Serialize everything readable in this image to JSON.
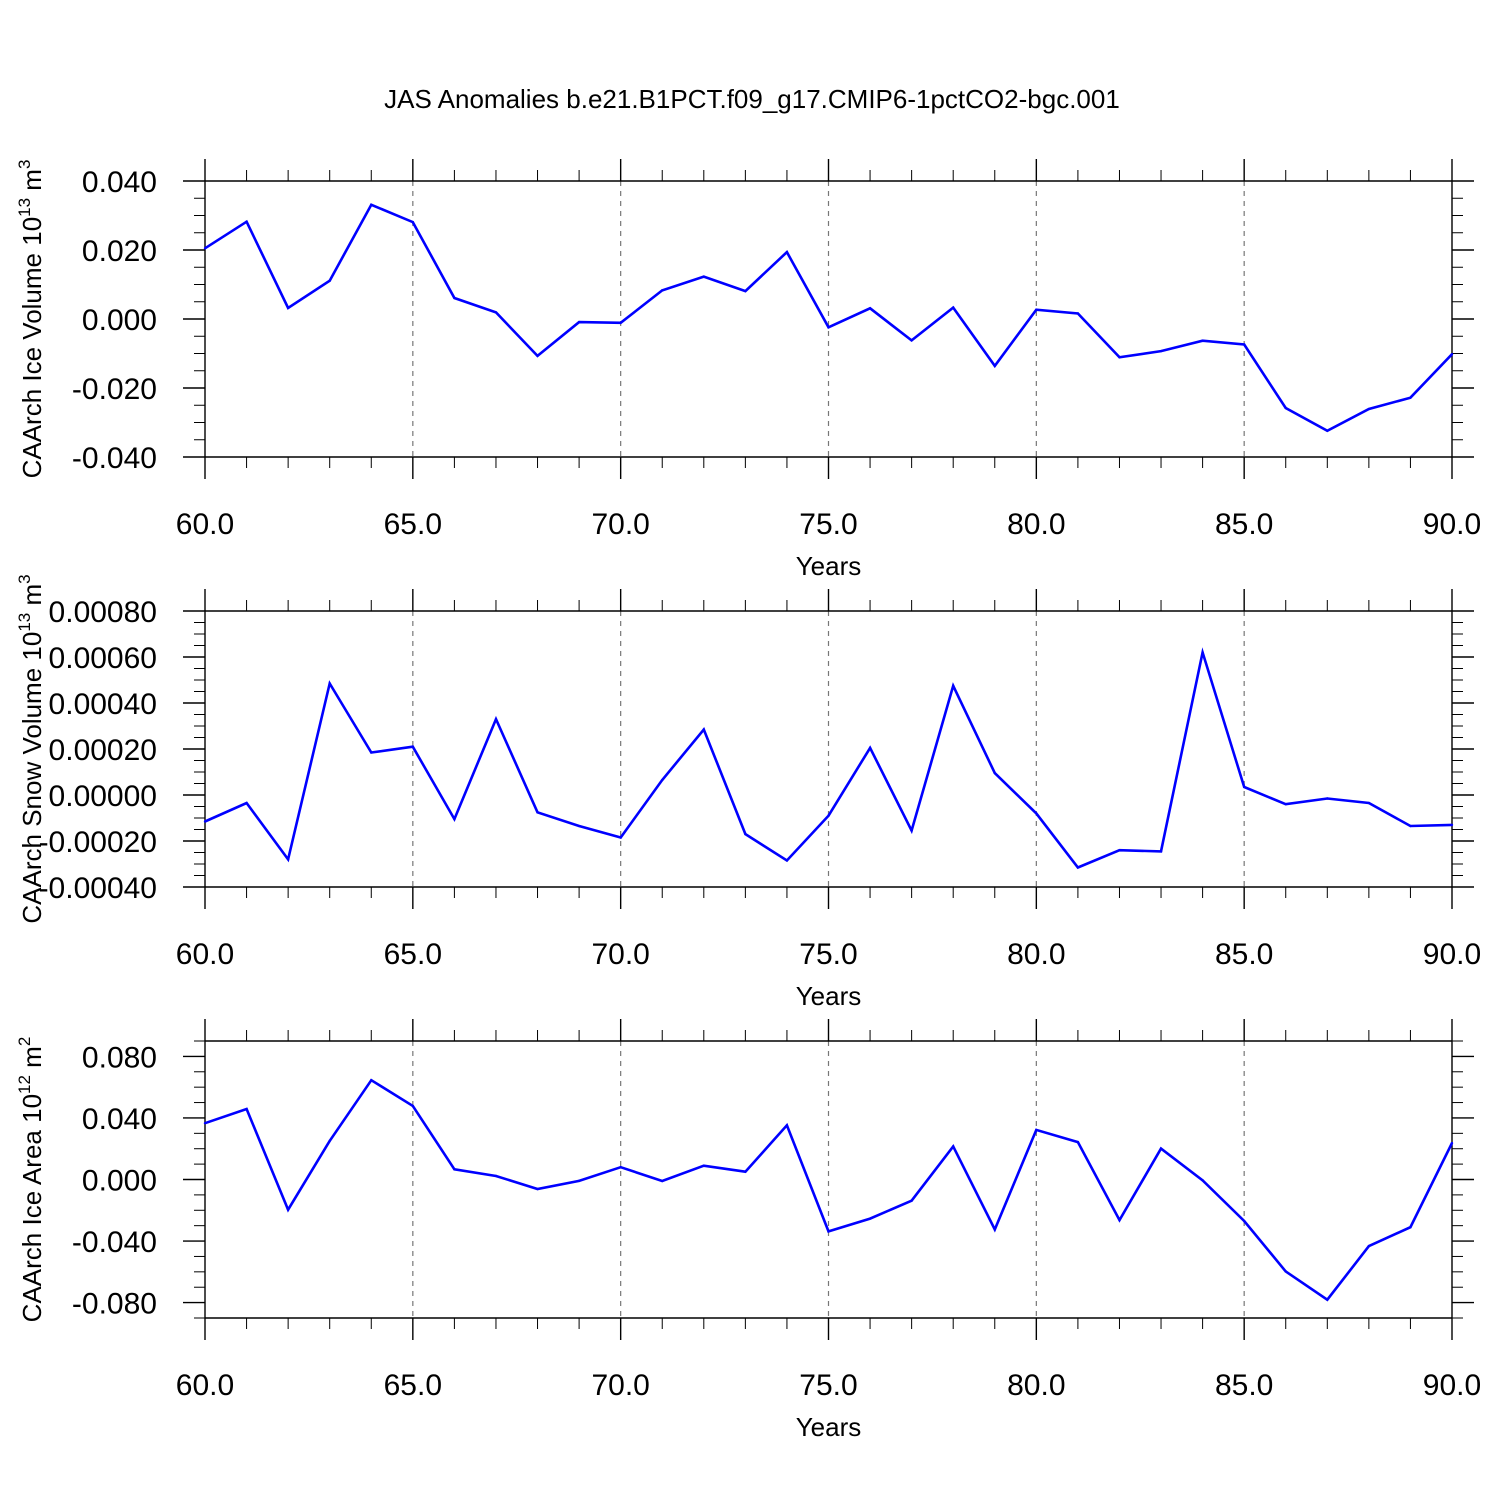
{
  "title": "JAS Anomalies b.e21.B1PCT.f09_g17.CMIP6-1pctCO2-bgc.001",
  "line_color": "#0000ff",
  "chart_data": [
    {
      "type": "line",
      "ylabel": "CAArch Ice Volume 10",
      "ylabel_exp": "13",
      "ylabel_unit": " m",
      "ylabel_unit_exp": "3",
      "xlabel": "Years",
      "xlim": [
        60,
        90
      ],
      "ylim": [
        -0.04,
        0.04
      ],
      "x_ticks": [
        "60.0",
        "65.0",
        "70.0",
        "75.0",
        "80.0",
        "85.0",
        "90.0"
      ],
      "y_ticks": [
        "-0.040",
        "-0.020",
        "0.000",
        "0.020",
        "0.040"
      ],
      "x": [
        60,
        61,
        62,
        63,
        64,
        65,
        66,
        67,
        68,
        69,
        70,
        71,
        72,
        73,
        74,
        75,
        76,
        77,
        78,
        79,
        80,
        81,
        82,
        83,
        84,
        85,
        86,
        87,
        88,
        89,
        90
      ],
      "values": [
        0.0205,
        0.0282,
        0.0032,
        0.0111,
        0.0331,
        0.0281,
        0.0061,
        0.0019,
        -0.0107,
        -0.0009,
        -0.0011,
        0.0083,
        0.0123,
        0.0081,
        0.0194,
        -0.0024,
        0.0031,
        -0.0062,
        0.0033,
        -0.0136,
        0.0027,
        0.0016,
        -0.0111,
        -0.0093,
        -0.0063,
        -0.0074,
        -0.0258,
        -0.0324,
        -0.0261,
        -0.0228,
        -0.0102
      ]
    },
    {
      "type": "line",
      "ylabel": "CAArch Snow Volume 10",
      "ylabel_exp": "13",
      "ylabel_unit": " m",
      "ylabel_unit_exp": "3",
      "xlabel": "Years",
      "xlim": [
        60,
        90
      ],
      "ylim": [
        -0.0004,
        0.0008
      ],
      "x_ticks": [
        "60.0",
        "65.0",
        "70.0",
        "75.0",
        "80.0",
        "85.0",
        "90.0"
      ],
      "y_ticks": [
        "-0.00040",
        "-0.00020",
        "0.00000",
        "0.00020",
        "0.00040",
        "0.00060",
        "0.00080"
      ],
      "x": [
        60,
        61,
        62,
        63,
        64,
        65,
        66,
        67,
        68,
        69,
        70,
        71,
        72,
        73,
        74,
        75,
        76,
        77,
        78,
        79,
        80,
        81,
        82,
        83,
        84,
        85,
        86,
        87,
        88,
        89,
        90
      ],
      "values": [
        -0.000115,
        -3.5e-05,
        -0.00028,
        0.000485,
        0.000185,
        0.00021,
        -0.000105,
        0.00033,
        -7.5e-05,
        -0.000135,
        -0.000185,
        6.5e-05,
        0.000285,
        -0.00017,
        -0.000285,
        -9e-05,
        0.000205,
        -0.000155,
        0.000475,
        9.5e-05,
        -8e-05,
        -0.000315,
        -0.00024,
        -0.000245,
        0.00062,
        3.5e-05,
        -4e-05,
        -1.5e-05,
        -3.5e-05,
        -0.000135,
        -0.00013
      ]
    },
    {
      "type": "line",
      "ylabel": "CAArch Ice Area 10",
      "ylabel_exp": "12",
      "ylabel_unit": " m",
      "ylabel_unit_exp": "2",
      "xlabel": "Years",
      "xlim": [
        60,
        90
      ],
      "ylim": [
        -0.09,
        0.09
      ],
      "x_ticks": [
        "60.0",
        "65.0",
        "70.0",
        "75.0",
        "80.0",
        "85.0",
        "90.0"
      ],
      "y_ticks": [
        "-0.080",
        "-0.040",
        "0.000",
        "0.040",
        "0.080"
      ],
      "x": [
        60,
        61,
        62,
        63,
        64,
        65,
        66,
        67,
        68,
        69,
        70,
        71,
        72,
        73,
        74,
        75,
        76,
        77,
        78,
        79,
        80,
        81,
        82,
        83,
        84,
        85,
        86,
        87,
        88,
        89,
        90
      ],
      "values": [
        0.0366,
        0.0458,
        -0.0196,
        0.0251,
        0.0645,
        0.0478,
        0.0066,
        0.0023,
        -0.0062,
        -0.0009,
        0.008,
        -0.001,
        0.009,
        0.0051,
        0.0352,
        -0.0337,
        -0.0254,
        -0.0138,
        0.0215,
        -0.0325,
        0.0322,
        0.0243,
        -0.0264,
        0.0201,
        -0.0005,
        -0.027,
        -0.0597,
        -0.0781,
        -0.0433,
        -0.031,
        0.0237
      ]
    }
  ]
}
